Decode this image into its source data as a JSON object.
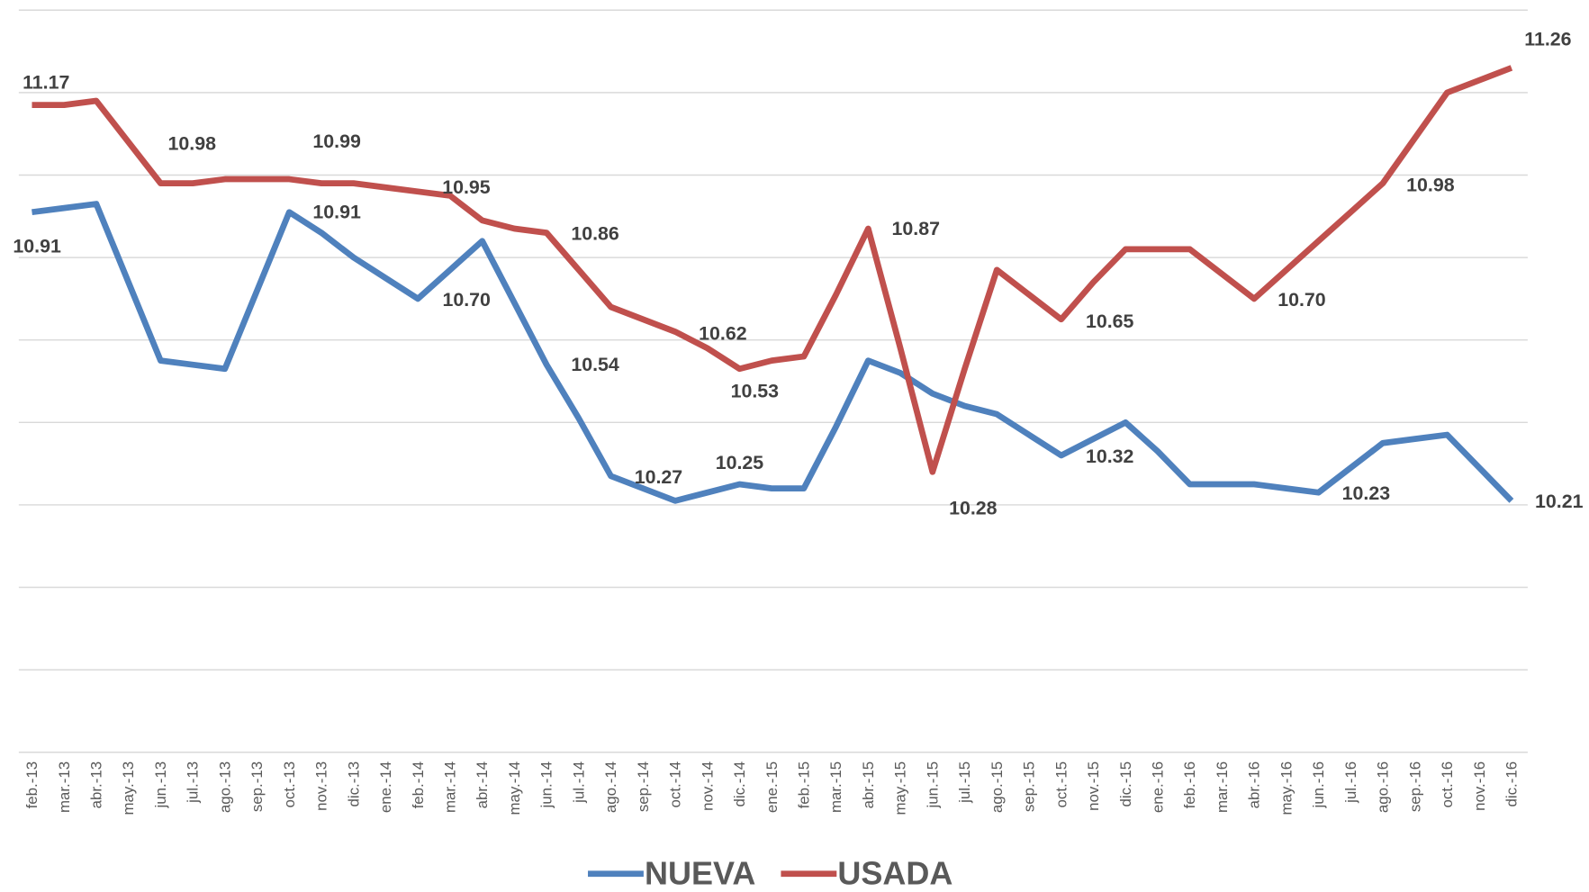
{
  "chart_data": {
    "type": "line",
    "categories": [
      "feb.-13",
      "mar.-13",
      "abr.-13",
      "may.-13",
      "jun.-13",
      "jul.-13",
      "ago.-13",
      "sep.-13",
      "oct.-13",
      "nov.-13",
      "dic.-13",
      "ene.-14",
      "feb.-14",
      "mar.-14",
      "abr.-14",
      "may.-14",
      "jun.-14",
      "jul.-14",
      "ago.-14",
      "sep.-14",
      "oct.-14",
      "nov.-14",
      "dic.-14",
      "ene.-15",
      "feb.-15",
      "mar.-15",
      "abr.-15",
      "may.-15",
      "jun.-15",
      "jul.-15",
      "ago.-15",
      "sep.-15",
      "oct.-15",
      "nov.-15",
      "dic.-15",
      "ene.-16",
      "feb.-16",
      "mar.-16",
      "abr.-16",
      "may.-16",
      "jun.-16",
      "jul.-16",
      "ago.-16",
      "sep.-16",
      "oct.-16",
      "nov.-16",
      "dic.-16"
    ],
    "series": [
      {
        "name": "NUEVA",
        "color": "#4f81bd",
        "values": [
          10.91,
          10.92,
          10.93,
          10.74,
          10.55,
          10.54,
          10.53,
          10.72,
          10.91,
          10.86,
          10.8,
          10.75,
          10.7,
          10.77,
          10.84,
          10.69,
          10.54,
          10.41,
          10.27,
          10.24,
          10.21,
          10.23,
          10.25,
          10.24,
          10.24,
          10.39,
          10.55,
          10.52,
          10.47,
          10.44,
          10.42,
          10.37,
          10.32,
          10.36,
          10.4,
          10.33,
          10.25,
          10.25,
          10.25,
          10.24,
          10.23,
          10.29,
          10.35,
          10.36,
          10.37,
          10.29,
          10.21
        ],
        "value_labels": [
          "10.91",
          null,
          null,
          null,
          null,
          null,
          null,
          null,
          "10.91",
          null,
          null,
          null,
          "10.70",
          null,
          null,
          null,
          "10.54",
          null,
          "10.27",
          null,
          null,
          null,
          "10.25",
          null,
          null,
          null,
          null,
          null,
          null,
          null,
          null,
          null,
          "10.32",
          null,
          null,
          null,
          null,
          null,
          null,
          null,
          "10.23",
          null,
          null,
          null,
          null,
          null,
          "10.21"
        ]
      },
      {
        "name": "USADA",
        "color": "#c0504d",
        "values": [
          11.17,
          11.17,
          11.18,
          11.08,
          10.98,
          10.98,
          10.99,
          10.99,
          10.99,
          10.98,
          10.98,
          10.97,
          10.96,
          10.95,
          10.89,
          10.87,
          10.86,
          10.77,
          10.68,
          10.65,
          10.62,
          10.58,
          10.53,
          10.55,
          10.56,
          10.71,
          10.87,
          10.58,
          10.28,
          10.53,
          10.77,
          10.71,
          10.65,
          10.74,
          10.82,
          10.82,
          10.82,
          10.76,
          10.7,
          10.77,
          10.84,
          10.91,
          10.98,
          11.09,
          11.2,
          11.23,
          11.26
        ],
        "value_labels": [
          "11.17",
          null,
          null,
          null,
          "10.98",
          null,
          null,
          null,
          "10.99",
          null,
          null,
          null,
          null,
          "10.95",
          null,
          null,
          "10.86",
          null,
          null,
          null,
          "10.62",
          null,
          "10.53",
          null,
          null,
          null,
          "10.87",
          null,
          "10.28",
          null,
          null,
          null,
          "10.65",
          null,
          null,
          null,
          null,
          null,
          "10.70",
          null,
          null,
          null,
          "10.98",
          null,
          null,
          null,
          "11.26"
        ]
      }
    ],
    "ylim": [
      9.6,
      11.4
    ],
    "yticks": [
      9.6,
      9.8,
      10.0,
      10.2,
      10.4,
      10.6,
      10.8,
      11.0,
      11.2,
      11.4
    ],
    "grid": true,
    "legend": "bottom"
  }
}
